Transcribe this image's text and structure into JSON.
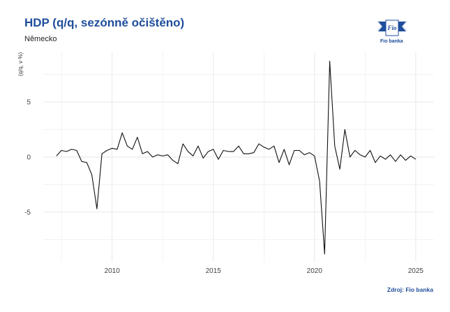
{
  "header": {
    "title": "HDP (q/q, sezónně očištěno)",
    "subtitle": "Německo"
  },
  "logo": {
    "icon": "fio-flag-logo",
    "mark_text": "Fio",
    "caption": "Fio banka"
  },
  "footer": {
    "source": "Zdroj: Fio banka"
  },
  "colors": {
    "title": "#1f4e9c",
    "line": "#111111",
    "grid": "#e6e6e6"
  },
  "chart_data": {
    "type": "line",
    "title": "HDP (q/q, sezónně očištěno)",
    "subtitle": "Německo",
    "xlabel": "",
    "ylabel": "(q/q, v %)",
    "xlim": [
      2006.6,
      2025.9
    ],
    "ylim": [
      -9.5,
      9.5
    ],
    "x_ticks": [
      2010,
      2015,
      2020,
      2025
    ],
    "x_tick_labels": [
      "2010",
      "2015",
      "2020",
      "2025"
    ],
    "y_ticks": [
      -5,
      0,
      5
    ],
    "y_tick_labels": [
      "-5",
      "0",
      "5"
    ],
    "grid": true,
    "legend": "none",
    "series": [
      {
        "x": [
          2007.25,
          2007.5,
          2007.75,
          2008.0,
          2008.25,
          2008.5,
          2008.75,
          2009.0,
          2009.25,
          2009.5,
          2009.75,
          2010.0,
          2010.25,
          2010.5,
          2010.75,
          2011.0,
          2011.25,
          2011.5,
          2011.75,
          2012.0,
          2012.25,
          2012.5,
          2012.75,
          2013.0,
          2013.25,
          2013.5,
          2013.75,
          2014.0,
          2014.25,
          2014.5,
          2014.75,
          2015.0,
          2015.25,
          2015.5,
          2015.75,
          2016.0,
          2016.25,
          2016.5,
          2016.75,
          2017.0,
          2017.25,
          2017.5,
          2017.75,
          2018.0,
          2018.25,
          2018.5,
          2018.75,
          2019.0,
          2019.25,
          2019.5,
          2019.75,
          2020.0,
          2020.25,
          2020.5,
          2020.75,
          2021.0,
          2021.25,
          2021.5,
          2021.75,
          2022.0,
          2022.25,
          2022.5,
          2022.75,
          2023.0,
          2023.25,
          2023.5,
          2023.75,
          2024.0,
          2024.25,
          2024.5,
          2024.75,
          2025.0
        ],
        "values": [
          0.1,
          0.6,
          0.5,
          0.7,
          0.6,
          -0.4,
          -0.5,
          -1.6,
          -4.7,
          0.3,
          0.6,
          0.8,
          0.7,
          2.2,
          1.0,
          0.7,
          1.8,
          0.3,
          0.5,
          0.0,
          0.2,
          0.1,
          0.2,
          -0.3,
          -0.6,
          1.2,
          0.5,
          0.1,
          1.0,
          -0.1,
          0.5,
          0.7,
          -0.2,
          0.6,
          0.5,
          0.5,
          1.0,
          0.3,
          0.3,
          0.4,
          1.2,
          0.9,
          0.7,
          1.0,
          -0.5,
          0.7,
          -0.7,
          0.6,
          0.6,
          0.2,
          0.4,
          0.1,
          -2.2,
          -8.8,
          8.7,
          1.0,
          -1.1,
          2.5,
          0.0,
          0.6,
          0.2,
          0.0,
          0.6,
          -0.5,
          0.1,
          -0.2,
          0.2,
          -0.4,
          0.2,
          -0.3,
          0.1,
          -0.2
        ]
      }
    ]
  }
}
